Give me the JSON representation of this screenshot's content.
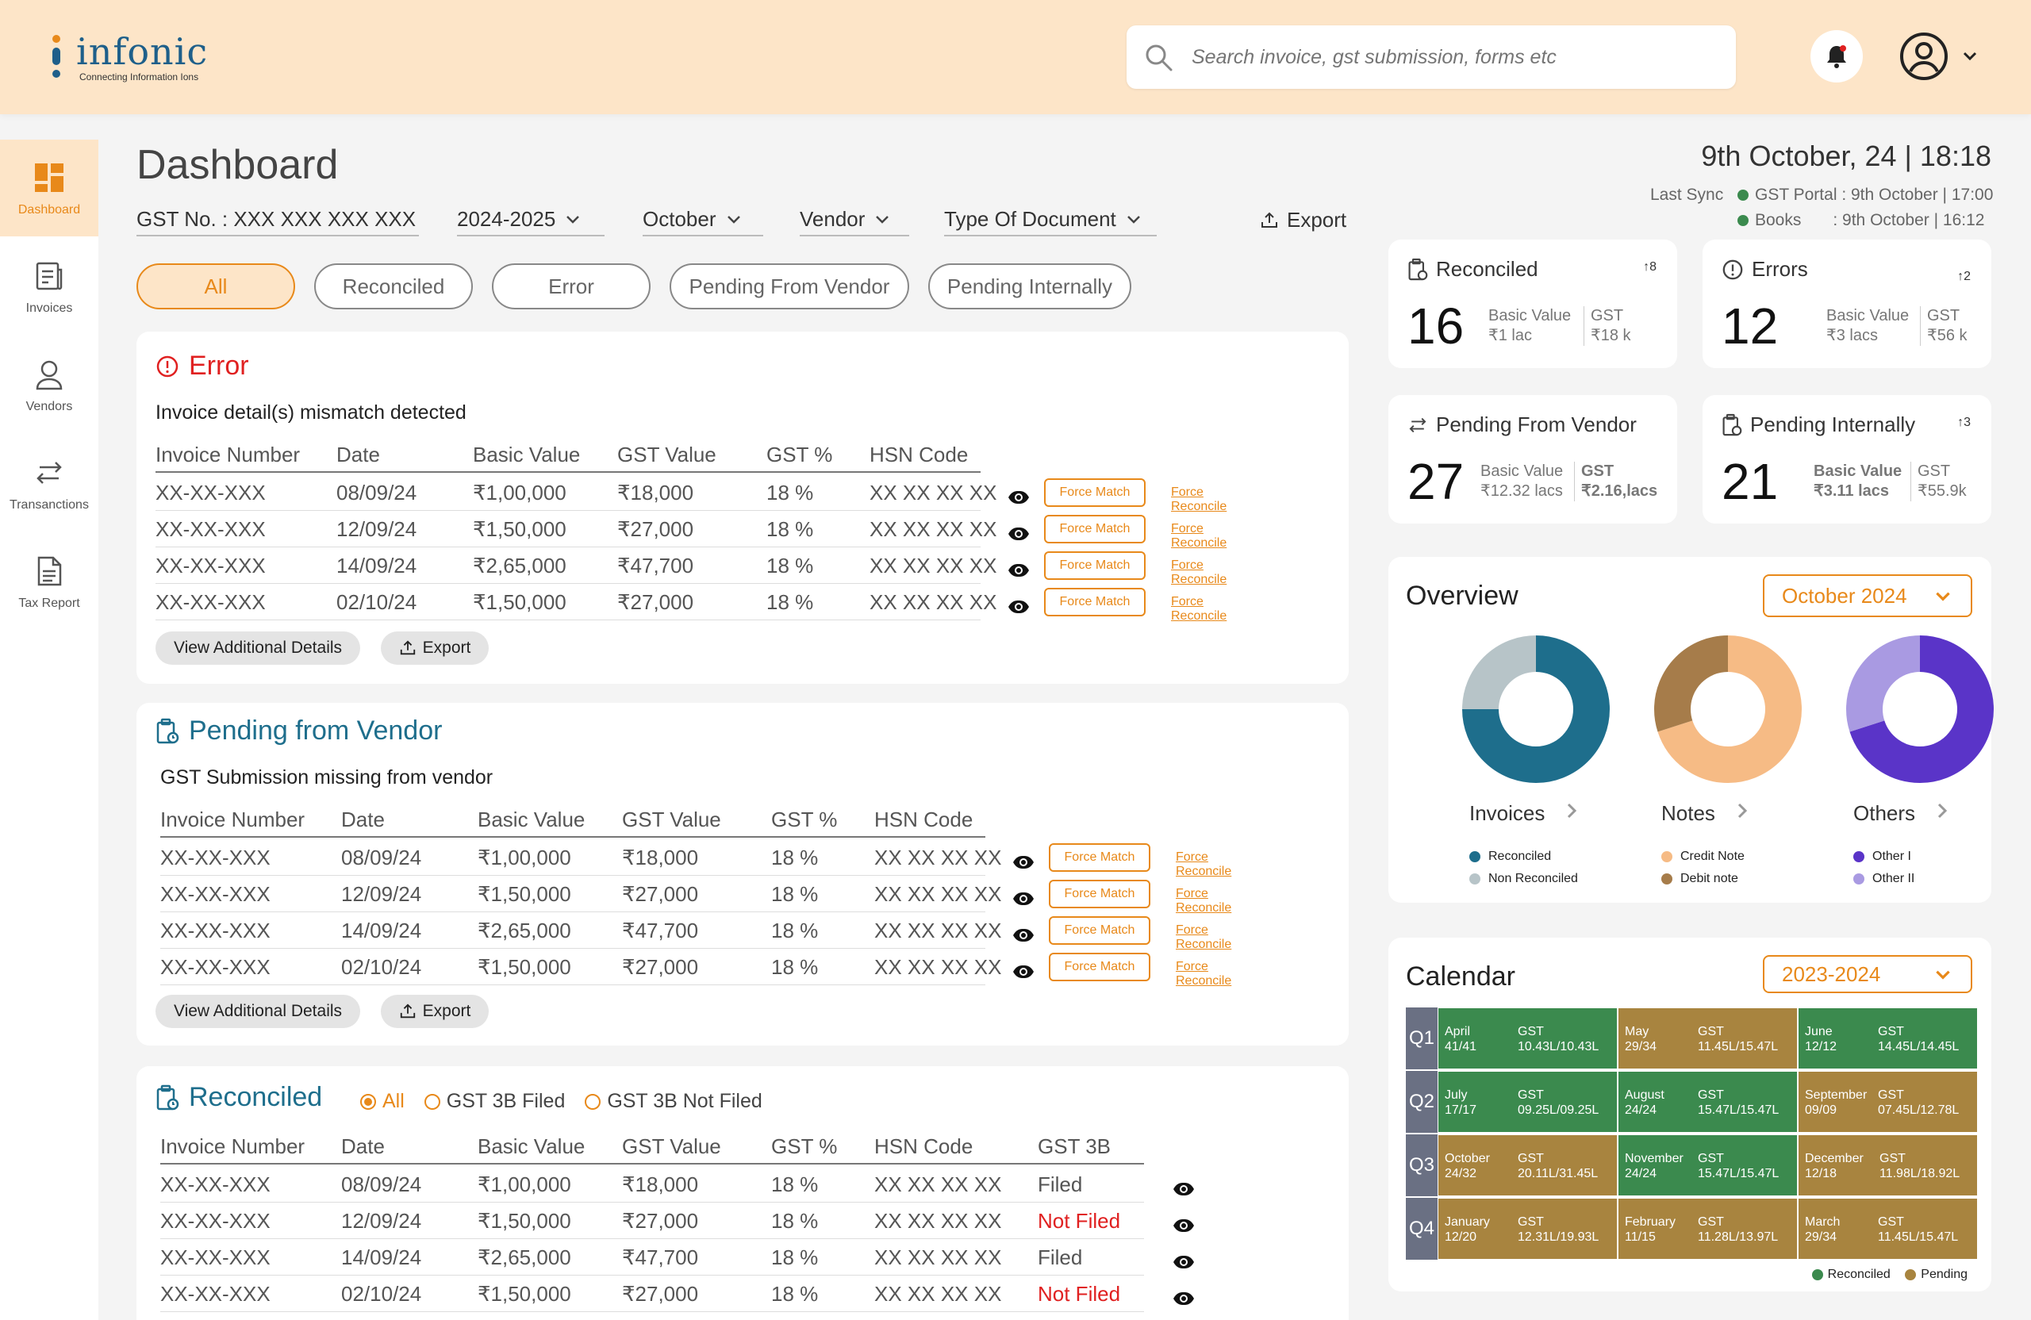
{
  "brand": {
    "name": "infonic",
    "tagline": "Connecting Information Ions"
  },
  "search": {
    "placeholder": "Search invoice, gst submission, forms etc"
  },
  "sidebar": {
    "items": [
      {
        "label": "Dashboard",
        "icon": "dashboard-icon"
      },
      {
        "label": "Invoices",
        "icon": "invoice-icon"
      },
      {
        "label": "Vendors",
        "icon": "vendor-icon"
      },
      {
        "label": "Transanctions",
        "icon": "transactions-icon"
      },
      {
        "label": "Tax Report",
        "icon": "report-icon"
      }
    ]
  },
  "page": {
    "title": "Dashboard"
  },
  "filters": {
    "gst": "GST No. : XXX XXX XXX XXX",
    "year": "2024-2025",
    "month": "October",
    "vendor": "Vendor",
    "doc_type": "Type Of Document",
    "export": "Export"
  },
  "pills": [
    "All",
    "Reconciled",
    "Error",
    "Pending  From Vendor",
    "Pending Internally"
  ],
  "colors": {
    "accent": "#e8891a",
    "header_bg": "#fde5c8",
    "error": "#e02020",
    "teal": "#1e6e8c",
    "green": "#3b8a4e",
    "brown": "#a8843f"
  },
  "table_headers": [
    "Invoice Number",
    "Date",
    "Basic Value",
    "GST Value",
    "GST %",
    "HSN Code"
  ],
  "error_card": {
    "title": "Error",
    "subtitle": "Invoice detail(s) mismatch detected",
    "rows": [
      [
        "XX-XX-XXX",
        "08/09/24",
        "₹1,00,000",
        "₹18,000",
        "18 %",
        "XX XX XX XX"
      ],
      [
        "XX-XX-XXX",
        "12/09/24",
        "₹1,50,000",
        "₹27,000",
        "18 %",
        "XX XX XX XX"
      ],
      [
        "XX-XX-XXX",
        "14/09/24",
        "₹2,65,000",
        "₹47,700",
        "18 %",
        "XX XX XX XX"
      ],
      [
        "XX-XX-XXX",
        "02/10/24",
        "₹1,50,000",
        "₹27,000",
        "18 %",
        "XX XX XX XX"
      ]
    ],
    "force_match": "Force Match",
    "force_reconcile": "Force Reconcile",
    "view_details": "View Additional Details",
    "export": "Export"
  },
  "vendor_card": {
    "title": "Pending  from Vendor",
    "subtitle": "GST Submission missing from vendor",
    "rows": [
      [
        "XX-XX-XXX",
        "08/09/24",
        "₹1,00,000",
        "₹18,000",
        "18 %",
        "XX XX XX XX"
      ],
      [
        "XX-XX-XXX",
        "12/09/24",
        "₹1,50,000",
        "₹27,000",
        "18 %",
        "XX XX XX XX"
      ],
      [
        "XX-XX-XXX",
        "14/09/24",
        "₹2,65,000",
        "₹47,700",
        "18 %",
        "XX XX XX XX"
      ],
      [
        "XX-XX-XXX",
        "02/10/24",
        "₹1,50,000",
        "₹27,000",
        "18 %",
        "XX XX XX XX"
      ]
    ],
    "force_match": "Force Match",
    "force_reconcile": "Force Reconcile",
    "view_details": "View Additional Details",
    "export": "Export"
  },
  "reconciled_card": {
    "title": "Reconciled",
    "radios": [
      "All",
      "GST 3B Filed",
      "GST 3B Not Filed"
    ],
    "extra_header": "GST 3B",
    "rows": [
      [
        "XX-XX-XXX",
        "08/09/24",
        "₹1,00,000",
        "₹18,000",
        "18 %",
        "XX XX XX XX",
        "Filed"
      ],
      [
        "XX-XX-XXX",
        "12/09/24",
        "₹1,50,000",
        "₹27,000",
        "18 %",
        "XX XX XX XX",
        "Not Filed"
      ],
      [
        "XX-XX-XXX",
        "14/09/24",
        "₹2,65,000",
        "₹47,700",
        "18 %",
        "XX XX XX XX",
        "Filed"
      ],
      [
        "XX-XX-XXX",
        "02/10/24",
        "₹1,50,000",
        "₹27,000",
        "18 %",
        "XX XX XX XX",
        "Not Filed"
      ]
    ]
  },
  "datetime": "9th October, 24 | 18:18",
  "sync": {
    "label": "Last Sync",
    "portal": "GST Portal : 9th October | 17:00",
    "books_label": "Books",
    "books_value": ": 9th October | 16:12"
  },
  "stats": [
    {
      "title": "Reconciled",
      "delta": "↑8",
      "count": "16",
      "bv_label": "Basic Value",
      "bv": "₹1 lac",
      "gst_label": "GST",
      "gst": "₹18 k"
    },
    {
      "title": "Errors",
      "delta": "↑2",
      "count": "12",
      "bv_label": "Basic Value",
      "bv": "₹3 lacs",
      "gst_label": "GST",
      "gst": "₹56 k"
    },
    {
      "title": "Pending From Vendor",
      "delta": "",
      "count": "27",
      "bv_label": "Basic Value",
      "bv": "₹12.32 lacs",
      "gst_label": "GST",
      "gst": "₹2.16,lacs"
    },
    {
      "title": "Pending Internally",
      "delta": "↑3",
      "count": "21",
      "bv_label": "Basic Value",
      "bv": "₹3.11 lacs",
      "gst_label": "GST",
      "gst": "₹55.9k"
    }
  ],
  "overview": {
    "title": "Overview",
    "period": "October 2024",
    "donuts": [
      {
        "label": "Invoices",
        "fractions": [
          0.75,
          0.25
        ],
        "colors": [
          "#1e6e8c",
          "#b7c4c8"
        ],
        "legend": [
          "Reconciled",
          "Non Reconciled"
        ]
      },
      {
        "label": "Notes",
        "fractions": [
          0.7,
          0.3
        ],
        "colors": [
          "#f6bb85",
          "#a67c4a"
        ],
        "legend": [
          "Credit Note",
          "Debit note"
        ]
      },
      {
        "label": "Others",
        "fractions": [
          0.7,
          0.3
        ],
        "colors": [
          "#5a34c8",
          "#a99ae2"
        ],
        "legend": [
          "Other I",
          "Other II"
        ]
      }
    ]
  },
  "calendar": {
    "title": "Calendar",
    "year": "2023-2024",
    "gst_label": "GST",
    "quarters": [
      "Q1",
      "Q2",
      "Q3",
      "Q4"
    ],
    "months": [
      {
        "name": "April",
        "count": "41/41",
        "gst": "10.43L/10.43L",
        "status": "reconciled"
      },
      {
        "name": "May",
        "count": "29/34",
        "gst": "11.45L/15.47L",
        "status": "pending"
      },
      {
        "name": "June",
        "count": "12/12",
        "gst": "14.45L/14.45L",
        "status": "reconciled"
      },
      {
        "name": "July",
        "count": "17/17",
        "gst": "09.25L/09.25L",
        "status": "reconciled"
      },
      {
        "name": "August",
        "count": "24/24",
        "gst": "15.47L/15.47L",
        "status": "reconciled"
      },
      {
        "name": "September",
        "count": "09/09",
        "gst": "07.45L/12.78L",
        "status": "pending"
      },
      {
        "name": "October",
        "count": "24/32",
        "gst": "20.11L/31.45L",
        "status": "pending"
      },
      {
        "name": "November",
        "count": "24/24",
        "gst": "15.47L/15.47L",
        "status": "reconciled"
      },
      {
        "name": "December",
        "count": "12/18",
        "gst": "11.98L/18.92L",
        "status": "pending"
      },
      {
        "name": "January",
        "count": "12/20",
        "gst": "12.31L/19.93L",
        "status": "pending"
      },
      {
        "name": "February",
        "count": "11/15",
        "gst": "11.28L/13.97L",
        "status": "pending"
      },
      {
        "name": "March",
        "count": "29/34",
        "gst": "11.45L/15.47L",
        "status": "pending"
      }
    ],
    "legend": [
      "Reconciled",
      "Pending"
    ]
  }
}
